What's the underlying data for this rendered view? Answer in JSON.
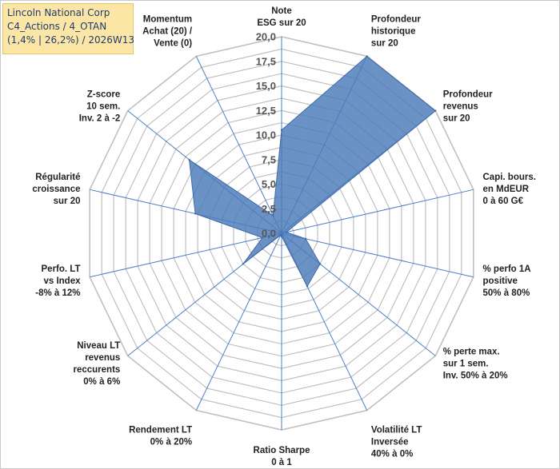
{
  "title_box": {
    "line1": "Lincoln National Corp",
    "line2": "C4_Actions / 4_OTAN",
    "line3": "(1,4% | 26,2%) / 2026W13"
  },
  "colors": {
    "fill": "#4a7ab8",
    "stroke": "#3f6aa8",
    "grid": "#c0c0c0",
    "spoke": "#4a7fc8",
    "title_bg": "#fbe6a6"
  },
  "chart_data": {
    "type": "radar",
    "title": "Lincoln National Corp",
    "rmin": 0,
    "rmax": 20,
    "ticks": [
      "0,0",
      "2,5",
      "5,0",
      "7,5",
      "10,0",
      "12,5",
      "15,0",
      "17,5",
      "20,0"
    ],
    "tick_values": [
      0,
      2.5,
      5,
      7.5,
      10,
      12.5,
      15,
      17.5,
      20
    ],
    "axes": [
      {
        "lines": [
          "Note",
          "ESG sur 20"
        ]
      },
      {
        "lines": [
          "Profondeur",
          "historique",
          "sur 20"
        ]
      },
      {
        "lines": [
          "Profondeur",
          "revenus",
          "sur 20"
        ]
      },
      {
        "lines": [
          "Capi. bours.",
          "en MdEUR",
          "0 à 60 G€"
        ]
      },
      {
        "lines": [
          "% perfo 1A",
          "positive",
          "50% à 80%"
        ]
      },
      {
        "lines": [
          "% perte max.",
          "sur 1 sem.",
          "Inv. 50% à 20%"
        ]
      },
      {
        "lines": [
          "Volatilité LT",
          "Inversée",
          "40% à 0%"
        ]
      },
      {
        "lines": [
          "Ratio Sharpe",
          "0 à 1"
        ]
      },
      {
        "lines": [
          "Rendement LT",
          "0% à 20%"
        ]
      },
      {
        "lines": [
          "Niveau LT",
          "revenus",
          "reccurents",
          "0% à 6%"
        ]
      },
      {
        "lines": [
          "Perfo. LT",
          "vs Index",
          "-8% à 12%"
        ]
      },
      {
        "lines": [
          "Régularité",
          "croissance",
          "sur 20"
        ]
      },
      {
        "lines": [
          "Z-score",
          "10 sem.",
          "Inv. 2 à -2"
        ]
      },
      {
        "lines": [
          "Momentum",
          "Achat (20) /",
          "Vente (0)"
        ]
      }
    ],
    "series": [
      {
        "name": "Lincoln National Corp",
        "values": [
          10.5,
          20.0,
          20.0,
          0.5,
          2.5,
          5.0,
          6.0,
          0.3,
          0.2,
          5.0,
          2.0,
          9.0,
          12.0,
          2.0
        ]
      }
    ]
  }
}
